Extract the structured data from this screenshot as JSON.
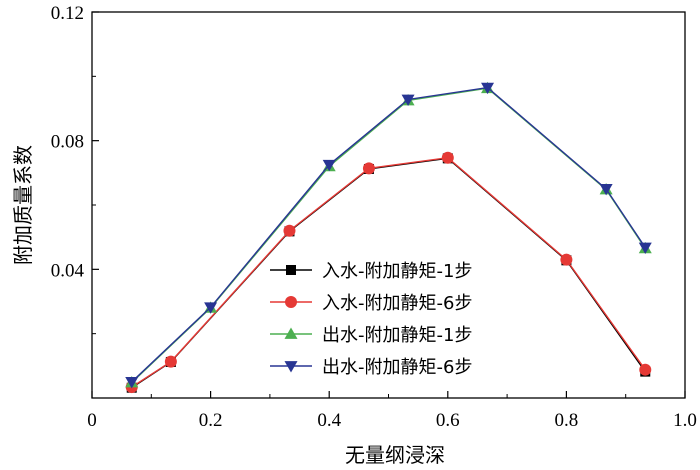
{
  "chart_data": {
    "type": "line",
    "xlabel": "无量纲浸深",
    "ylabel": "附加质量系数",
    "xlim": [
      0,
      1.0
    ],
    "ylim": [
      0,
      0.12
    ],
    "xticks": [
      0,
      0.2,
      0.4,
      0.6,
      0.8,
      1.0
    ],
    "xtick_labels": [
      "0",
      "0.2",
      "0.4",
      "0.6",
      "0.8",
      "1.0"
    ],
    "yticks": [
      0.04,
      0.08,
      0.12
    ],
    "ytick_labels": [
      "0.04",
      "0.08",
      "0.12"
    ],
    "legend_position": "lower-right",
    "grid": false,
    "series": [
      {
        "name": "入水-附加静矩-1步",
        "color": "#000000",
        "marker": "square",
        "x": [
          0.067,
          0.133,
          0.333,
          0.467,
          0.6,
          0.8,
          0.933
        ],
        "y": [
          0.0032,
          0.0112,
          0.0518,
          0.0712,
          0.0745,
          0.0428,
          0.0082
        ]
      },
      {
        "name": "入水-附加静矩-6步",
        "color": "#e53935",
        "marker": "circle",
        "x": [
          0.067,
          0.133,
          0.333,
          0.467,
          0.6,
          0.8,
          0.933
        ],
        "y": [
          0.0034,
          0.0113,
          0.052,
          0.0714,
          0.0747,
          0.043,
          0.0088
        ]
      },
      {
        "name": "出水-附加静矩-1步",
        "color": "#4caf50",
        "marker": "triangle-up",
        "x": [
          0.067,
          0.2,
          0.4,
          0.533,
          0.667,
          0.867,
          0.933
        ],
        "y": [
          0.0048,
          0.028,
          0.072,
          0.0925,
          0.0963,
          0.0648,
          0.0465
        ]
      },
      {
        "name": "出水-附加静矩-6步",
        "color": "#283593",
        "marker": "triangle-down",
        "x": [
          0.067,
          0.2,
          0.4,
          0.533,
          0.667,
          0.867,
          0.933
        ],
        "y": [
          0.005,
          0.0282,
          0.0725,
          0.0928,
          0.0965,
          0.065,
          0.0468
        ]
      }
    ]
  }
}
